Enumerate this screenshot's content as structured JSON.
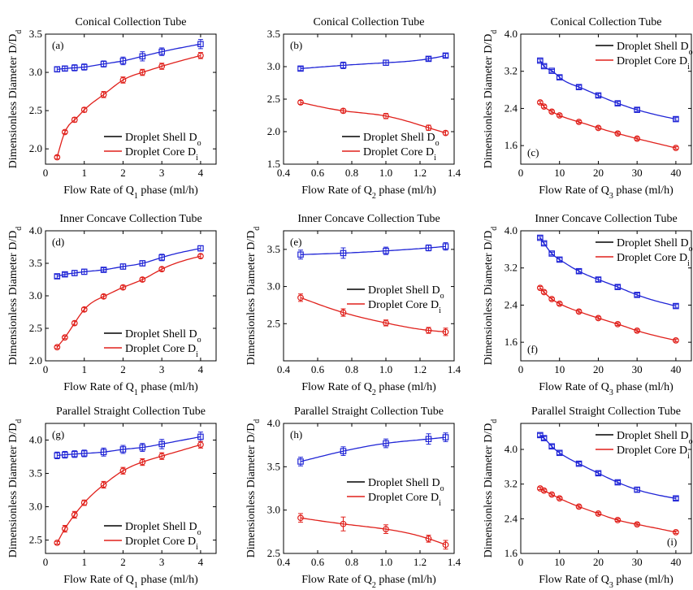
{
  "figure": {
    "colors": {
      "shell": "#1f24d6",
      "core": "#e0201b"
    }
  },
  "chart_data": [
    {
      "panel": "(a)",
      "type": "scatter",
      "title": "Conical Collection Tube",
      "xlabel": "Flow Rate of Q₁ phase (ml/h)",
      "ylabel": "Dimensionless Diameter  D/Dd",
      "xlim": [
        0,
        4.4
      ],
      "ylim": [
        1.8,
        3.5
      ],
      "xticks": [
        0,
        1,
        2,
        3,
        4
      ],
      "yticks": [
        2.0,
        2.5,
        3.0,
        3.5
      ],
      "legend": "bottom-right",
      "series": [
        {
          "name": "Droplet Shell Do",
          "marker": "square",
          "x": [
            0.3,
            0.5,
            0.75,
            1.0,
            1.5,
            2.0,
            2.5,
            3.0,
            4.0
          ],
          "y": [
            3.04,
            3.05,
            3.06,
            3.07,
            3.11,
            3.15,
            3.21,
            3.27,
            3.37
          ],
          "err": [
            0.03,
            0.03,
            0.04,
            0.04,
            0.04,
            0.05,
            0.06,
            0.05,
            0.06
          ]
        },
        {
          "name": "Droplet Core Di",
          "marker": "circle",
          "x": [
            0.3,
            0.5,
            0.75,
            1.0,
            1.5,
            2.0,
            2.5,
            3.0,
            4.0
          ],
          "y": [
            1.89,
            2.22,
            2.38,
            2.51,
            2.71,
            2.9,
            3.0,
            3.08,
            3.22
          ],
          "err": [
            0.02,
            0.02,
            0.03,
            0.03,
            0.04,
            0.04,
            0.04,
            0.04,
            0.04
          ]
        }
      ]
    },
    {
      "panel": "(b)",
      "type": "scatter",
      "title": "Conical Collection Tube",
      "xlabel": "Flow Rate of Q₂ phase (ml/h)",
      "ylabel": "",
      "xlim": [
        0.4,
        1.4
      ],
      "ylim": [
        1.5,
        3.5
      ],
      "xticks": [
        0.4,
        0.6,
        0.8,
        1.0,
        1.2,
        1.4
      ],
      "yticks": [
        1.5,
        2.0,
        2.5,
        3.0,
        3.5
      ],
      "legend": "bottom-right",
      "series": [
        {
          "name": "Droplet Shell Do",
          "marker": "square",
          "x": [
            0.5,
            0.75,
            1.0,
            1.25,
            1.35
          ],
          "y": [
            2.97,
            3.02,
            3.06,
            3.12,
            3.17
          ],
          "err": [
            0.03,
            0.05,
            0.04,
            0.03,
            0.03
          ]
        },
        {
          "name": "Droplet Core Di",
          "marker": "circle",
          "x": [
            0.5,
            0.75,
            1.0,
            1.25,
            1.35
          ],
          "y": [
            2.45,
            2.32,
            2.24,
            2.06,
            1.98
          ],
          "err": [
            0.03,
            0.03,
            0.04,
            0.04,
            0.03
          ]
        }
      ]
    },
    {
      "panel": "(c)",
      "type": "scatter",
      "title": "Conical Collection Tube",
      "xlabel": "Flow Rate of Q₃ phase (ml/h)",
      "ylabel": "Dimensionless Diameter  D/Dd",
      "xlim": [
        0,
        44
      ],
      "ylim": [
        1.2,
        4.0
      ],
      "xticks": [
        0,
        10,
        20,
        30,
        40
      ],
      "yticks": [
        1.6,
        2.4,
        3.2,
        4.0
      ],
      "legend": "top-right",
      "series": [
        {
          "name": "Droplet Shell Do",
          "marker": "square",
          "x": [
            5,
            6,
            8,
            10,
            15,
            20,
            25,
            30,
            40
          ],
          "y": [
            3.43,
            3.31,
            3.21,
            3.07,
            2.86,
            2.68,
            2.51,
            2.37,
            2.17
          ],
          "err": [
            0.03,
            0.03,
            0.03,
            0.04,
            0.04,
            0.04,
            0.04,
            0.04,
            0.04
          ]
        },
        {
          "name": "Droplet Core Di",
          "marker": "circle",
          "x": [
            5,
            6,
            8,
            10,
            15,
            20,
            25,
            30,
            40
          ],
          "y": [
            2.53,
            2.44,
            2.33,
            2.25,
            2.11,
            1.98,
            1.86,
            1.75,
            1.55
          ],
          "err": [
            0.03,
            0.03,
            0.03,
            0.03,
            0.03,
            0.03,
            0.03,
            0.03,
            0.03
          ]
        }
      ]
    },
    {
      "panel": "(d)",
      "type": "scatter",
      "title": "Inner Concave Collection Tube",
      "xlabel": "Flow Rate of Q₁ phase (ml/h)",
      "ylabel": "Dimensionless Diameter  D/Dd",
      "xlim": [
        0,
        4.4
      ],
      "ylim": [
        2.0,
        4.0
      ],
      "xticks": [
        0,
        1,
        2,
        3,
        4
      ],
      "yticks": [
        2.0,
        2.5,
        3.0,
        3.5,
        4.0
      ],
      "legend": "bottom-right",
      "series": [
        {
          "name": "Droplet Shell Do",
          "marker": "square",
          "x": [
            0.3,
            0.5,
            0.75,
            1.0,
            1.5,
            2.0,
            2.5,
            3.0,
            4.0
          ],
          "y": [
            3.3,
            3.33,
            3.35,
            3.37,
            3.4,
            3.45,
            3.5,
            3.59,
            3.73
          ],
          "err": [
            0.03,
            0.03,
            0.04,
            0.04,
            0.03,
            0.04,
            0.04,
            0.05,
            0.04
          ]
        },
        {
          "name": "Droplet Core Di",
          "marker": "circle",
          "x": [
            0.3,
            0.5,
            0.75,
            1.0,
            1.5,
            2.0,
            2.5,
            3.0,
            4.0
          ],
          "y": [
            2.21,
            2.36,
            2.58,
            2.79,
            2.99,
            3.13,
            3.25,
            3.41,
            3.61
          ],
          "err": [
            0.02,
            0.02,
            0.03,
            0.03,
            0.03,
            0.03,
            0.03,
            0.03,
            0.03
          ]
        }
      ]
    },
    {
      "panel": "(e)",
      "type": "scatter",
      "title": "Inner Concave Collection Tube",
      "xlabel": "Flow Rate of Q₂ phase (ml/h)",
      "ylabel": "Dimensionless Diameter  D/Dd",
      "xlim": [
        0.4,
        1.4
      ],
      "ylim": [
        2.0,
        3.75
      ],
      "xticks": [
        0.4,
        0.6,
        0.8,
        1.0,
        1.2,
        1.4
      ],
      "yticks": [
        2.5,
        3.0,
        3.5
      ],
      "legend": "right",
      "series": [
        {
          "name": "Droplet Shell Do",
          "marker": "square",
          "x": [
            0.5,
            0.75,
            1.0,
            1.25,
            1.35
          ],
          "y": [
            3.43,
            3.45,
            3.48,
            3.52,
            3.54
          ],
          "err": [
            0.06,
            0.07,
            0.05,
            0.04,
            0.05
          ]
        },
        {
          "name": "Droplet Core Di",
          "marker": "circle",
          "x": [
            0.5,
            0.75,
            1.0,
            1.25,
            1.35
          ],
          "y": [
            2.85,
            2.65,
            2.51,
            2.41,
            2.39
          ],
          "err": [
            0.05,
            0.05,
            0.04,
            0.04,
            0.05
          ]
        }
      ]
    },
    {
      "panel": "(f)",
      "type": "scatter",
      "title": "Inner Concave Collection Tube",
      "xlabel": "Flow Rate of Q₃ phase (ml/h)",
      "ylabel": "Dimensionless Diameter  D/Dd",
      "xlim": [
        0,
        44
      ],
      "ylim": [
        1.2,
        4.0
      ],
      "xticks": [
        0,
        10,
        20,
        30,
        40
      ],
      "yticks": [
        1.6,
        2.4,
        3.2,
        4.0
      ],
      "legend": "top-right",
      "series": [
        {
          "name": "Droplet Shell Do",
          "marker": "square",
          "x": [
            5,
            6,
            8,
            10,
            15,
            20,
            25,
            30,
            40
          ],
          "y": [
            3.85,
            3.73,
            3.51,
            3.38,
            3.13,
            2.95,
            2.79,
            2.62,
            2.38
          ],
          "err": [
            0.03,
            0.03,
            0.03,
            0.04,
            0.04,
            0.04,
            0.04,
            0.04,
            0.04
          ]
        },
        {
          "name": "Droplet Core Di",
          "marker": "circle",
          "x": [
            5,
            6,
            8,
            10,
            15,
            20,
            25,
            30,
            40
          ],
          "y": [
            2.77,
            2.68,
            2.53,
            2.43,
            2.26,
            2.12,
            1.99,
            1.85,
            1.64
          ],
          "err": [
            0.03,
            0.03,
            0.03,
            0.03,
            0.03,
            0.03,
            0.03,
            0.03,
            0.03
          ]
        }
      ]
    },
    {
      "panel": "(g)",
      "type": "scatter",
      "title": "Parallel Straight Collection Tube",
      "xlabel": "Flow Rate of Q₁ phase (ml/h)",
      "ylabel": "Dimensionless Diameter  D/Dd",
      "xlim": [
        0,
        4.4
      ],
      "ylim": [
        2.3,
        4.25
      ],
      "xticks": [
        0,
        1,
        2,
        3,
        4
      ],
      "yticks": [
        2.5,
        3.0,
        3.5,
        4.0
      ],
      "legend": "bottom-right",
      "series": [
        {
          "name": "Droplet Shell Do",
          "marker": "square",
          "x": [
            0.3,
            0.5,
            0.75,
            1.0,
            1.5,
            2.0,
            2.5,
            3.0,
            4.0
          ],
          "y": [
            3.77,
            3.78,
            3.79,
            3.8,
            3.82,
            3.86,
            3.89,
            3.94,
            4.05
          ],
          "err": [
            0.05,
            0.05,
            0.05,
            0.05,
            0.06,
            0.06,
            0.06,
            0.07,
            0.07
          ]
        },
        {
          "name": "Droplet Core Di",
          "marker": "circle",
          "x": [
            0.3,
            0.5,
            0.75,
            1.0,
            1.5,
            2.0,
            2.5,
            3.0,
            4.0
          ],
          "y": [
            2.46,
            2.67,
            2.88,
            3.06,
            3.33,
            3.54,
            3.67,
            3.76,
            3.93
          ],
          "err": [
            0.02,
            0.05,
            0.05,
            0.04,
            0.05,
            0.05,
            0.05,
            0.05,
            0.05
          ]
        }
      ]
    },
    {
      "panel": "(h)",
      "type": "scatter",
      "title": "Parallel Straight Collection Tube",
      "xlabel": "Flow Rate of Q₂ phase (ml/h)",
      "ylabel": "Dimensionless Diameter  D/Dd",
      "xlim": [
        0.4,
        1.4
      ],
      "ylim": [
        2.5,
        4.0
      ],
      "xticks": [
        0.4,
        0.6,
        0.8,
        1.0,
        1.2,
        1.4
      ],
      "yticks": [
        2.5,
        3.0,
        3.5,
        4.0
      ],
      "legend": "right",
      "series": [
        {
          "name": "Droplet Shell Do",
          "marker": "square",
          "x": [
            0.5,
            0.75,
            1.0,
            1.25,
            1.35
          ],
          "y": [
            3.56,
            3.68,
            3.77,
            3.82,
            3.84
          ],
          "err": [
            0.05,
            0.05,
            0.05,
            0.06,
            0.05
          ]
        },
        {
          "name": "Droplet Core Di",
          "marker": "circle",
          "x": [
            0.5,
            0.75,
            1.0,
            1.25,
            1.35
          ],
          "y": [
            2.91,
            2.84,
            2.78,
            2.67,
            2.6
          ],
          "err": [
            0.05,
            0.08,
            0.05,
            0.04,
            0.05
          ]
        }
      ]
    },
    {
      "panel": "(i)",
      "type": "scatter",
      "title": "Parallel Straight Collection Tube",
      "xlabel": "Flow Rate of Q₃ phase (ml/h)",
      "ylabel": "Dimensionless Diameter  D/Dd",
      "xlim": [
        0,
        44
      ],
      "ylim": [
        1.6,
        4.6
      ],
      "xticks": [
        0,
        10,
        20,
        30,
        40
      ],
      "yticks": [
        1.6,
        2.4,
        3.2,
        4.0
      ],
      "legend": "top-right",
      "series": [
        {
          "name": "Droplet Shell Do",
          "marker": "square",
          "x": [
            5,
            6,
            8,
            10,
            15,
            20,
            25,
            30,
            40
          ],
          "y": [
            4.33,
            4.26,
            4.07,
            3.92,
            3.67,
            3.45,
            3.24,
            3.07,
            2.87
          ],
          "err": [
            0.04,
            0.04,
            0.04,
            0.04,
            0.04,
            0.04,
            0.04,
            0.05,
            0.04
          ]
        },
        {
          "name": "Droplet Core Di",
          "marker": "circle",
          "x": [
            5,
            6,
            8,
            10,
            15,
            20,
            25,
            30,
            40
          ],
          "y": [
            3.1,
            3.05,
            2.96,
            2.87,
            2.68,
            2.52,
            2.37,
            2.27,
            2.09
          ],
          "err": [
            0.03,
            0.03,
            0.03,
            0.03,
            0.03,
            0.03,
            0.03,
            0.03,
            0.03
          ]
        }
      ]
    }
  ]
}
